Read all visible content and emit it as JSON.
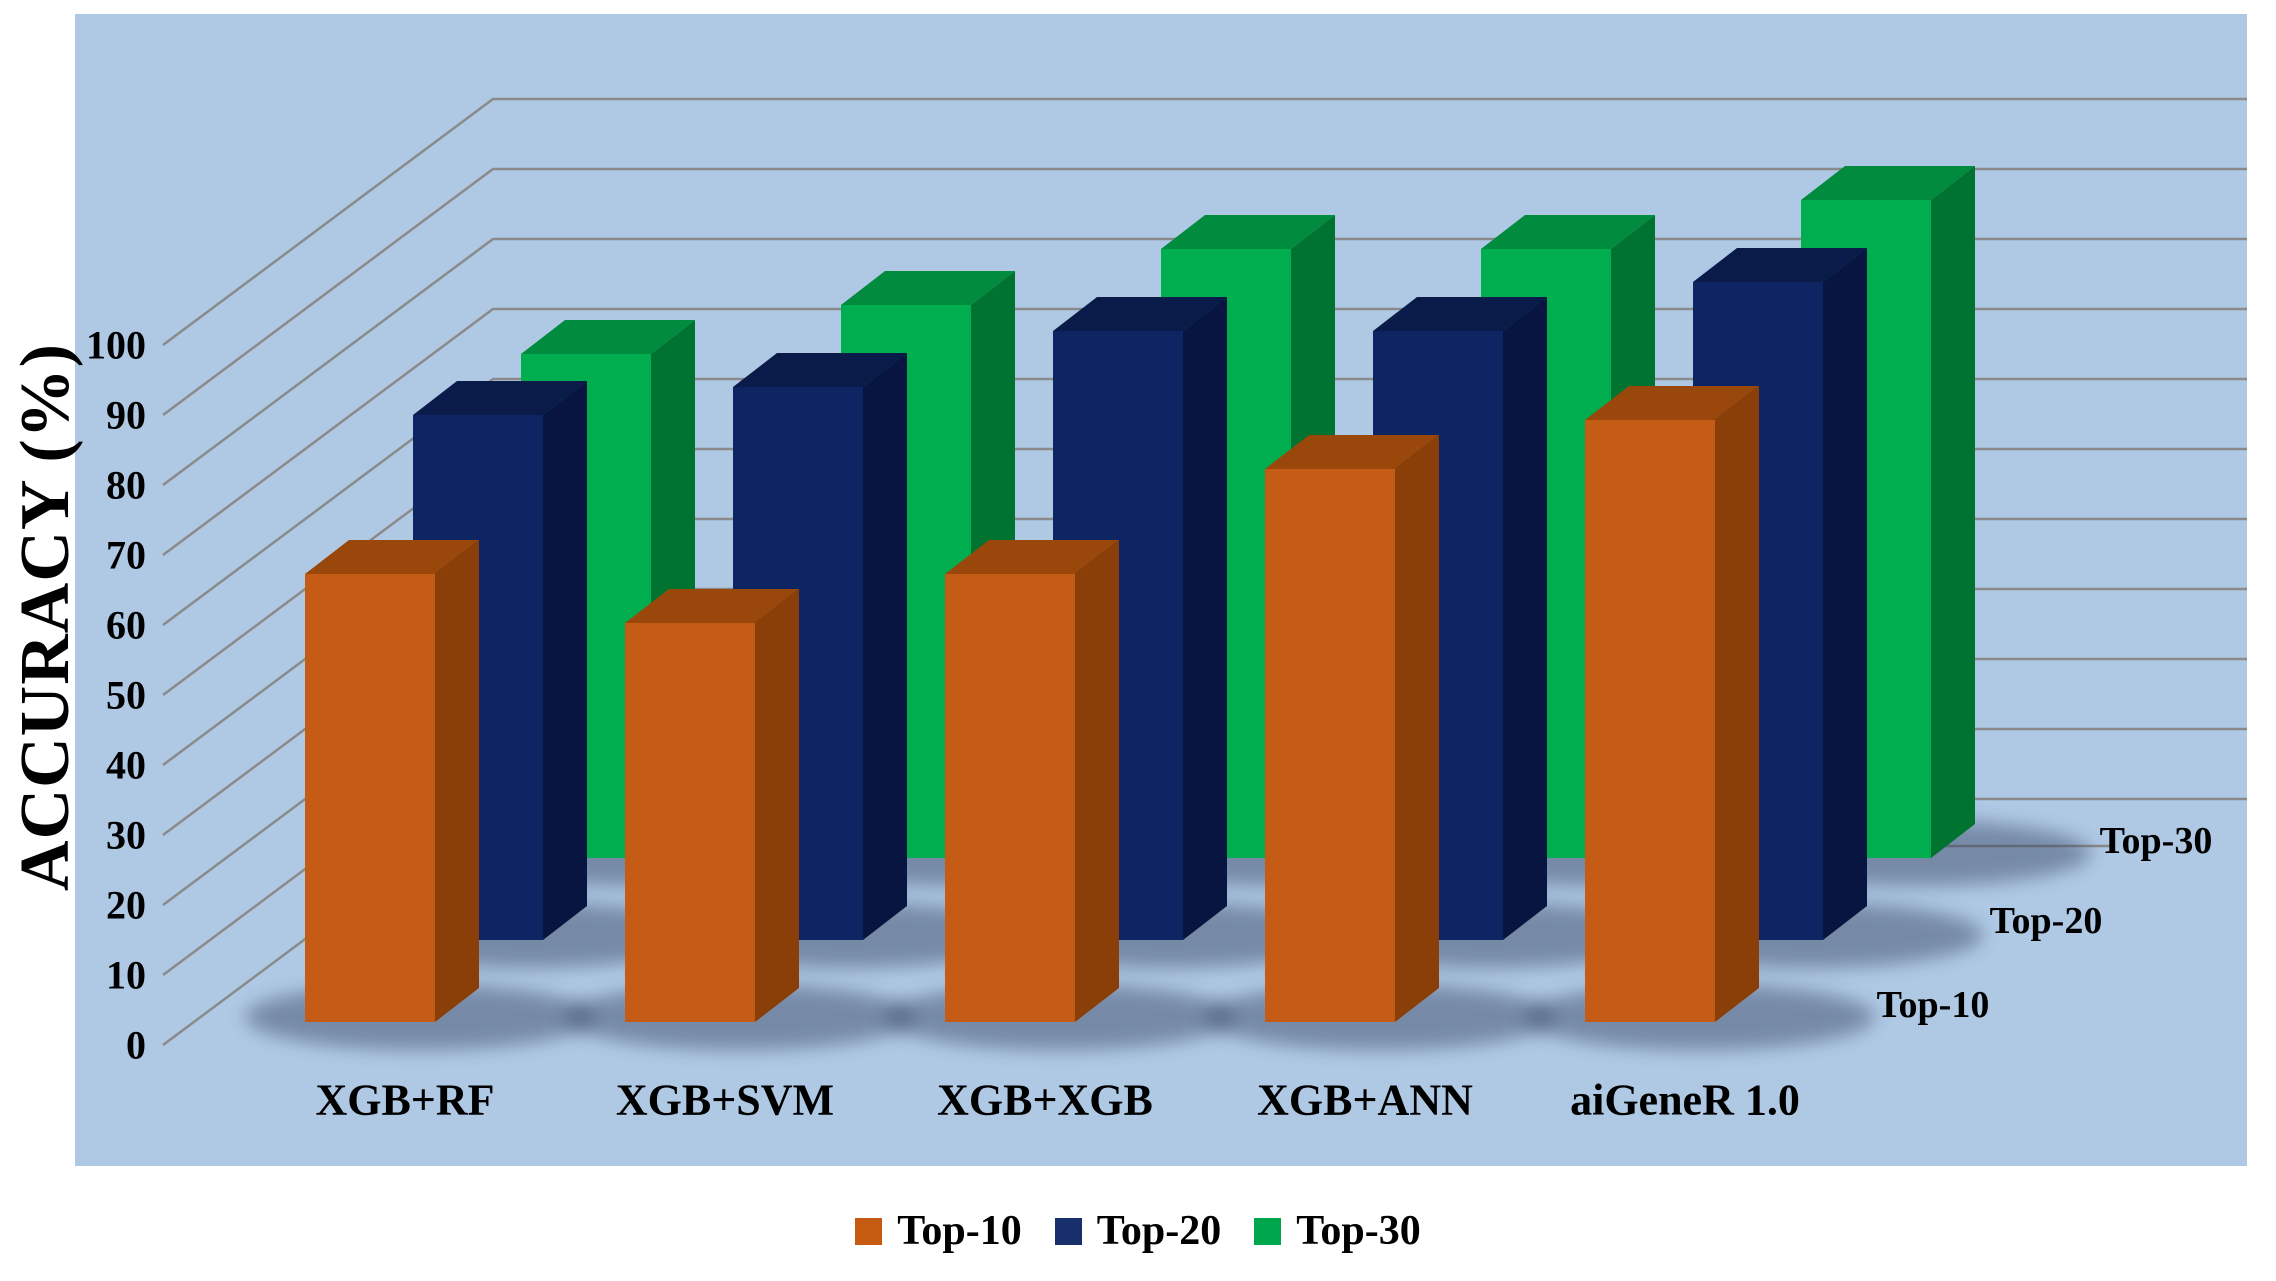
{
  "figure": {
    "background": "#FFFFFF",
    "plot_background": "#AFC9E5",
    "grid_color": "#8A8A8A",
    "shadow_color": "#32405F"
  },
  "chart_data": {
    "type": "bar",
    "projection": "3d",
    "title": "",
    "xlabel": "",
    "ylabel": "ACCURACY (%)",
    "ylim": [
      0,
      100
    ],
    "ytick_step": 10,
    "yticks": [
      0,
      10,
      20,
      30,
      40,
      50,
      60,
      70,
      80,
      90,
      100
    ],
    "grid": true,
    "categories": [
      "XGB+RF",
      "XGB+SVM",
      "XGB+XGB",
      "XGB+ANN",
      "aiGeneR 1.0"
    ],
    "series": [
      {
        "name": "Top-10",
        "values": [
          64,
          57,
          64,
          79,
          86
        ],
        "color": "#C55A11",
        "face_colors": {
          "front": "#C45C16",
          "top": "#9A470C",
          "side": "#8A3F08"
        }
      },
      {
        "name": "Top-20",
        "values": [
          75,
          79,
          87,
          87,
          94
        ],
        "color": "#17306B",
        "face_colors": {
          "front": "#0E2563",
          "top": "#0A1B4A",
          "side": "#071540"
        }
      },
      {
        "name": "Top-30",
        "values": [
          72,
          79,
          87,
          87,
          94
        ],
        "color": "#00A64C",
        "face_colors": {
          "front": "#00AE50",
          "top": "#008B3F",
          "side": "#017331"
        }
      }
    ],
    "depth_axis_labels": [
      "Top-10",
      "Top-20",
      "Top-30"
    ],
    "legend": {
      "position": "bottom",
      "items": [
        "Top-10",
        "Top-20",
        "Top-30"
      ]
    }
  }
}
